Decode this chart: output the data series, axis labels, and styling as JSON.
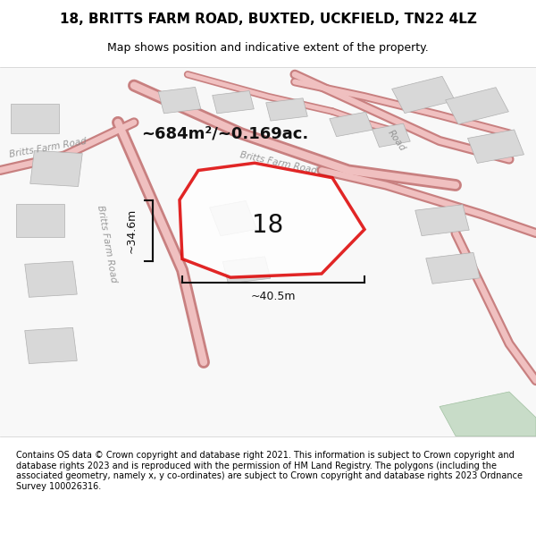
{
  "title": "18, BRITTS FARM ROAD, BUXTED, UCKFIELD, TN22 4LZ",
  "subtitle": "Map shows position and indicative extent of the property.",
  "footer": "Contains OS data © Crown copyright and database right 2021. This information is subject to Crown copyright and database rights 2023 and is reproduced with the permission of HM Land Registry. The polygons (including the associated geometry, namely x, y co-ordinates) are subject to Crown copyright and database rights 2023 Ordnance Survey 100026316.",
  "area_label": "~684m²/~0.169ac.",
  "number_label": "18",
  "dim_h": "~34.6m",
  "dim_w": "~40.5m",
  "bg_color": "#f5f5f5",
  "map_bg": "#ffffff",
  "road_color": "#f0c0c0",
  "road_line_color": "#e08080",
  "building_fill": "#d8d8d8",
  "building_edge": "#b0b0b0",
  "green_fill": "#c8dcc8",
  "green_edge": "#a0c0a0",
  "property_color": "#dd0000",
  "property_fill": "#ffffff",
  "dim_color": "#111111",
  "title_fontsize": 11,
  "subtitle_fontsize": 9,
  "footer_fontsize": 7
}
